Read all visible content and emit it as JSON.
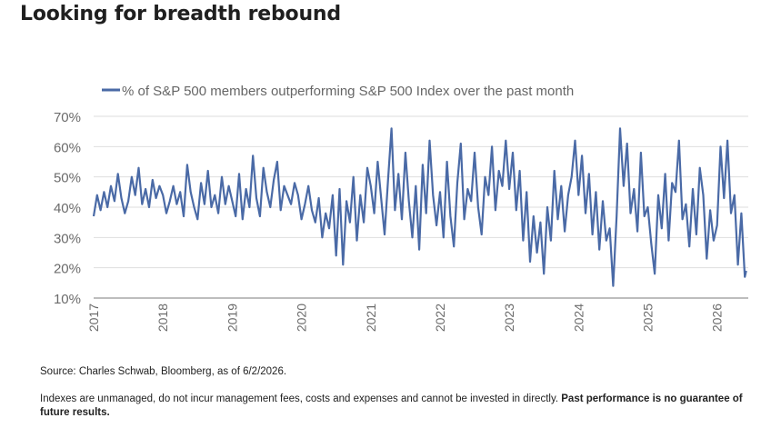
{
  "title": "Looking for breadth rebound",
  "source": "Source: Charles Schwab, Bloomberg, as of 6/2/2026.",
  "disclaimer_text": "Indexes are unmanaged, do not incur management fees, costs and expenses and cannot be invested in directly.",
  "disclaimer_bold": "Past performance is no guarantee of future results.",
  "colors": {
    "series": "#4a6aa6",
    "grid": "#dedede",
    "axis": "#bdbdbd",
    "tick_text": "#6b6b6b"
  },
  "chart_data": {
    "type": "line",
    "legend_position": "top-left",
    "grid": true,
    "ylim": [
      10,
      70
    ],
    "yticks": [
      10,
      20,
      30,
      40,
      50,
      60,
      70
    ],
    "ytick_labels": [
      "10%",
      "20%",
      "30%",
      "40%",
      "50%",
      "60%",
      "70%"
    ],
    "xlim": [
      2017.0,
      2026.45
    ],
    "xticks": [
      2017,
      2018,
      2019,
      2020,
      2021,
      2022,
      2023,
      2024,
      2025,
      2026
    ],
    "xtick_labels": [
      "2017",
      "2018",
      "2019",
      "2020",
      "2021",
      "2022",
      "2023",
      "2024",
      "2025",
      "2026"
    ],
    "series": [
      {
        "name": "% of S&P 500 members outperforming S&P 500 Index over the past month",
        "x": [
          2017.0,
          2017.05,
          2017.1,
          2017.15,
          2017.2,
          2017.25,
          2017.3,
          2017.35,
          2017.4,
          2017.45,
          2017.5,
          2017.55,
          2017.6,
          2017.65,
          2017.7,
          2017.75,
          2017.8,
          2017.85,
          2017.9,
          2017.95,
          2018.0,
          2018.05,
          2018.1,
          2018.15,
          2018.2,
          2018.25,
          2018.3,
          2018.35,
          2018.4,
          2018.45,
          2018.5,
          2018.55,
          2018.6,
          2018.65,
          2018.7,
          2018.75,
          2018.8,
          2018.85,
          2018.9,
          2018.95,
          2019.0,
          2019.05,
          2019.1,
          2019.15,
          2019.2,
          2019.25,
          2019.3,
          2019.35,
          2019.4,
          2019.45,
          2019.5,
          2019.55,
          2019.6,
          2019.65,
          2019.7,
          2019.75,
          2019.8,
          2019.85,
          2019.9,
          2019.95,
          2020.0,
          2020.05,
          2020.1,
          2020.15,
          2020.2,
          2020.25,
          2020.3,
          2020.35,
          2020.4,
          2020.45,
          2020.5,
          2020.55,
          2020.6,
          2020.65,
          2020.7,
          2020.75,
          2020.8,
          2020.85,
          2020.9,
          2020.95,
          2021.0,
          2021.05,
          2021.1,
          2021.15,
          2021.2,
          2021.25,
          2021.3,
          2021.35,
          2021.4,
          2021.45,
          2021.5,
          2021.55,
          2021.6,
          2021.65,
          2021.7,
          2021.75,
          2021.8,
          2021.85,
          2021.9,
          2021.95,
          2022.0,
          2022.05,
          2022.1,
          2022.15,
          2022.2,
          2022.25,
          2022.3,
          2022.35,
          2022.4,
          2022.45,
          2022.5,
          2022.55,
          2022.6,
          2022.65,
          2022.7,
          2022.75,
          2022.8,
          2022.85,
          2022.9,
          2022.95,
          2023.0,
          2023.05,
          2023.1,
          2023.15,
          2023.2,
          2023.25,
          2023.3,
          2023.35,
          2023.4,
          2023.45,
          2023.5,
          2023.55,
          2023.6,
          2023.65,
          2023.7,
          2023.75,
          2023.8,
          2023.85,
          2023.9,
          2023.95,
          2024.0,
          2024.05,
          2024.1,
          2024.15,
          2024.2,
          2024.25,
          2024.3,
          2024.35,
          2024.4,
          2024.45,
          2024.5,
          2024.55,
          2024.6,
          2024.65,
          2024.7,
          2024.75,
          2024.8,
          2024.85,
          2024.9,
          2024.95,
          2025.0,
          2025.05,
          2025.1,
          2025.15,
          2025.2,
          2025.25,
          2025.3,
          2025.35,
          2025.4,
          2025.45,
          2025.5,
          2025.55,
          2025.6,
          2025.65,
          2025.7,
          2025.75,
          2025.8,
          2025.85,
          2025.9,
          2025.95,
          2026.0,
          2026.05,
          2026.1,
          2026.15,
          2026.2,
          2026.25,
          2026.3,
          2026.35,
          2026.4,
          2026.42
        ],
        "values": [
          37,
          44,
          39,
          45,
          40,
          47,
          42,
          51,
          43,
          38,
          42,
          50,
          44,
          53,
          41,
          46,
          40,
          49,
          43,
          47,
          44,
          38,
          42,
          47,
          41,
          45,
          37,
          54,
          45,
          40,
          36,
          48,
          41,
          52,
          40,
          44,
          38,
          50,
          41,
          47,
          42,
          37,
          51,
          36,
          46,
          40,
          57,
          43,
          37,
          53,
          45,
          40,
          49,
          55,
          39,
          47,
          44,
          41,
          48,
          44,
          36,
          41,
          47,
          39,
          35,
          43,
          30,
          38,
          33,
          44,
          24,
          46,
          21,
          42,
          35,
          50,
          29,
          44,
          35,
          53,
          47,
          38,
          55,
          43,
          31,
          49,
          66,
          39,
          51,
          36,
          58,
          42,
          30,
          47,
          26,
          54,
          38,
          62,
          44,
          34,
          45,
          30,
          55,
          37,
          27,
          48,
          61,
          36,
          46,
          42,
          58,
          40,
          31,
          50,
          44,
          60,
          39,
          52,
          47,
          62,
          46,
          58,
          39,
          52,
          29,
          45,
          22,
          37,
          25,
          35,
          18,
          40,
          29,
          52,
          36,
          47,
          32,
          44,
          50,
          62,
          44,
          57,
          38,
          51,
          31,
          45,
          26,
          42,
          29,
          33,
          14,
          37,
          66,
          47,
          61,
          38,
          46,
          32,
          58,
          37,
          40,
          28,
          18,
          44,
          33,
          51,
          29,
          48,
          45,
          62,
          36,
          41,
          27,
          46,
          31,
          53,
          44,
          23,
          39,
          29,
          34,
          60,
          43,
          62,
          38,
          44,
          21,
          38,
          17,
          19
        ]
      }
    ]
  }
}
